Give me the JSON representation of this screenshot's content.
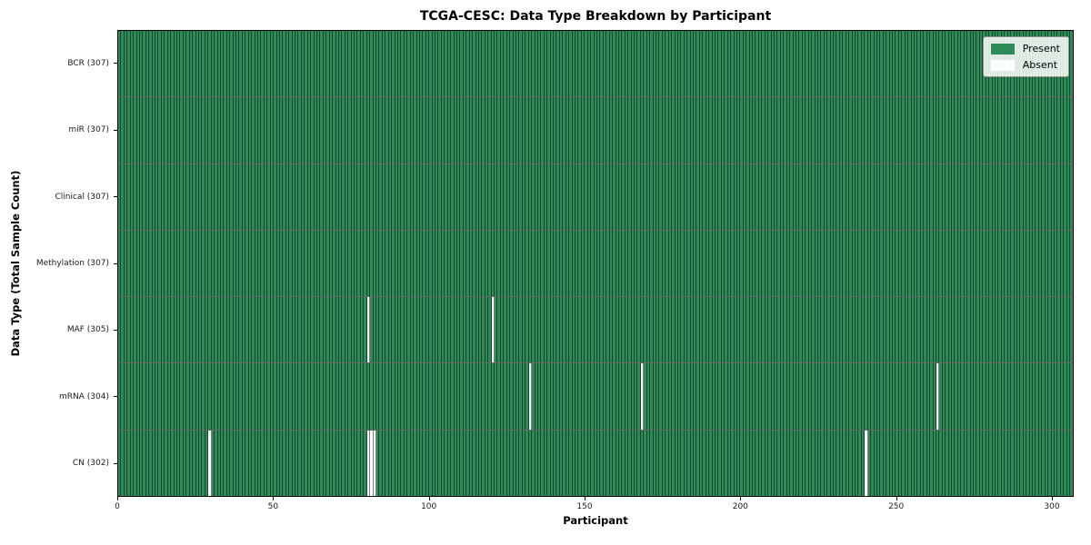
{
  "chart_data": {
    "type": "heatmap",
    "title": "TCGA-CESC: Data Type Breakdown by Participant",
    "xlabel": "Participant",
    "ylabel": "Data Type (Total Sample Count)",
    "x_ticks": [
      0,
      50,
      100,
      150,
      200,
      250,
      300
    ],
    "xlim": [
      0,
      307
    ],
    "n_participants": 307,
    "grid": false,
    "legend_position": "upper right",
    "rows": [
      {
        "label": "BCR (307)",
        "present_count": 307,
        "absent_participants": []
      },
      {
        "label": "miR (307)",
        "present_count": 307,
        "absent_participants": []
      },
      {
        "label": "Clinical (307)",
        "present_count": 307,
        "absent_participants": []
      },
      {
        "label": "Methylation (307)",
        "present_count": 307,
        "absent_participants": []
      },
      {
        "label": "MAF (305)",
        "present_count": 305,
        "absent_participants": [
          80,
          120
        ]
      },
      {
        "label": "mRNA (304)",
        "present_count": 304,
        "absent_participants": [
          132,
          168,
          263
        ]
      },
      {
        "label": "CN (302)",
        "present_count": 302,
        "absent_participants": [
          29,
          80,
          81,
          82,
          240
        ]
      }
    ],
    "legend": [
      {
        "label": "Present",
        "color": "#2e8b57"
      },
      {
        "label": "Absent",
        "color": "#ffffff"
      }
    ],
    "colors": {
      "present": "#2e8b57",
      "absent": "#ffffff",
      "cell_edge": "rgba(0,0,0,0.5)",
      "spine": "#000000"
    }
  }
}
